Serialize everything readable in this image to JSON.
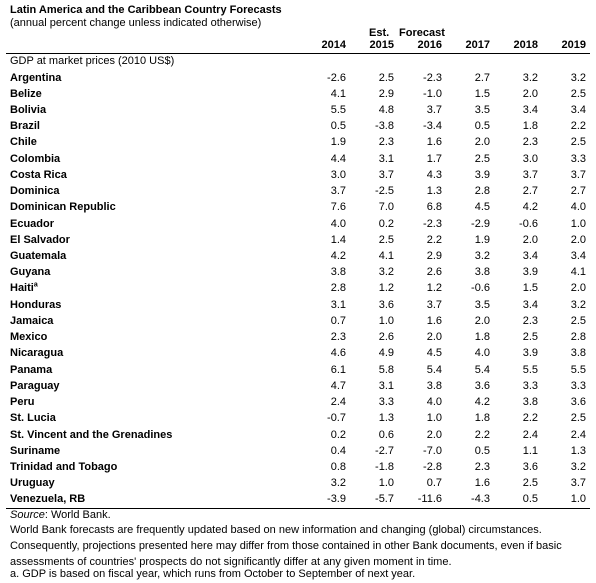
{
  "header": {
    "title": "Latin America and the Caribbean Country Forecasts",
    "subtitle": "(annual percent change unless indicated otherwise)"
  },
  "table": {
    "group_labels": {
      "estimate": "Est.",
      "forecast": "Forecast"
    },
    "columns": [
      "2014",
      "2015",
      "2016",
      "2017",
      "2018",
      "2019"
    ],
    "section": "GDP at market prices (2010 US$)",
    "rows": [
      {
        "name": "Argentina",
        "values": [
          "-2.6",
          "2.5",
          "-2.3",
          "2.7",
          "3.2",
          "3.2"
        ]
      },
      {
        "name": "Belize",
        "values": [
          "4.1",
          "2.9",
          "-1.0",
          "1.5",
          "2.0",
          "2.5"
        ]
      },
      {
        "name": "Bolivia",
        "values": [
          "5.5",
          "4.8",
          "3.7",
          "3.5",
          "3.4",
          "3.4"
        ]
      },
      {
        "name": "Brazil",
        "values": [
          "0.5",
          "-3.8",
          "-3.4",
          "0.5",
          "1.8",
          "2.2"
        ]
      },
      {
        "name": "Chile",
        "values": [
          "1.9",
          "2.3",
          "1.6",
          "2.0",
          "2.3",
          "2.5"
        ]
      },
      {
        "name": "Colombia",
        "values": [
          "4.4",
          "3.1",
          "1.7",
          "2.5",
          "3.0",
          "3.3"
        ]
      },
      {
        "name": "Costa Rica",
        "values": [
          "3.0",
          "3.7",
          "4.3",
          "3.9",
          "3.7",
          "3.7"
        ]
      },
      {
        "name": "Dominica",
        "values": [
          "3.7",
          "-2.5",
          "1.3",
          "2.8",
          "2.7",
          "2.7"
        ]
      },
      {
        "name": "Dominican Republic",
        "values": [
          "7.6",
          "7.0",
          "6.8",
          "4.5",
          "4.2",
          "4.0"
        ]
      },
      {
        "name": "Ecuador",
        "values": [
          "4.0",
          "0.2",
          "-2.3",
          "-2.9",
          "-0.6",
          "1.0"
        ]
      },
      {
        "name": "El Salvador",
        "values": [
          "1.4",
          "2.5",
          "2.2",
          "1.9",
          "2.0",
          "2.0"
        ]
      },
      {
        "name": "Guatemala",
        "values": [
          "4.2",
          "4.1",
          "2.9",
          "3.2",
          "3.4",
          "3.4"
        ]
      },
      {
        "name": "Guyana",
        "values": [
          "3.8",
          "3.2",
          "2.6",
          "3.8",
          "3.9",
          "4.1"
        ]
      },
      {
        "name": "Haiti",
        "note": "a",
        "values": [
          "2.8",
          "1.2",
          "1.2",
          "-0.6",
          "1.5",
          "2.0"
        ]
      },
      {
        "name": "Honduras",
        "values": [
          "3.1",
          "3.6",
          "3.7",
          "3.5",
          "3.4",
          "3.2"
        ]
      },
      {
        "name": "Jamaica",
        "values": [
          "0.7",
          "1.0",
          "1.6",
          "2.0",
          "2.3",
          "2.5"
        ]
      },
      {
        "name": "Mexico",
        "values": [
          "2.3",
          "2.6",
          "2.0",
          "1.8",
          "2.5",
          "2.8"
        ]
      },
      {
        "name": "Nicaragua",
        "values": [
          "4.6",
          "4.9",
          "4.5",
          "4.0",
          "3.9",
          "3.8"
        ]
      },
      {
        "name": "Panama",
        "values": [
          "6.1",
          "5.8",
          "5.4",
          "5.4",
          "5.5",
          "5.5"
        ]
      },
      {
        "name": "Paraguay",
        "values": [
          "4.7",
          "3.1",
          "3.8",
          "3.6",
          "3.3",
          "3.3"
        ]
      },
      {
        "name": "Peru",
        "values": [
          "2.4",
          "3.3",
          "4.0",
          "4.2",
          "3.8",
          "3.6"
        ]
      },
      {
        "name": "St. Lucia",
        "values": [
          "-0.7",
          "1.3",
          "1.0",
          "1.8",
          "2.2",
          "2.5"
        ]
      },
      {
        "name": "St. Vincent and the Grenadines",
        "values": [
          "0.2",
          "0.6",
          "2.0",
          "2.2",
          "2.4",
          "2.4"
        ]
      },
      {
        "name": "Suriname",
        "values": [
          "0.4",
          "-2.7",
          "-7.0",
          "0.5",
          "1.1",
          "1.3"
        ]
      },
      {
        "name": "Trinidad and Tobago",
        "values": [
          "0.8",
          "-1.8",
          "-2.8",
          "2.3",
          "3.6",
          "3.2"
        ]
      },
      {
        "name": "Uruguay",
        "values": [
          "3.2",
          "1.0",
          "0.7",
          "1.6",
          "2.5",
          "3.7"
        ]
      },
      {
        "name": "Venezuela, RB",
        "values": [
          "-3.9",
          "-5.7",
          "-11.6",
          "-4.3",
          "0.5",
          "1.0"
        ]
      }
    ]
  },
  "footnotes": {
    "source_label": "Source",
    "source_text": ": World Bank.",
    "notes": [
      "World Bank forecasts are frequently updated based on new information and changing (global) circumstances. Consequently, projections presented here may differ from those contained in other Bank documents, even if basic assessments of countries' prospects do not significantly differ at any given moment in time.",
      "a. GDP is based on fiscal year, which runs from October to September of next year."
    ]
  }
}
